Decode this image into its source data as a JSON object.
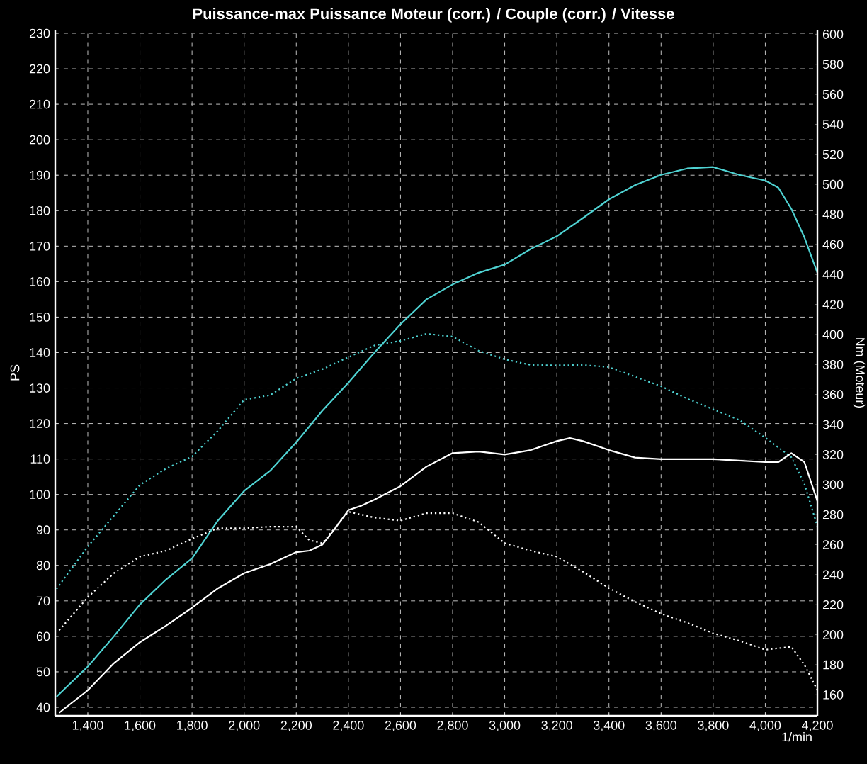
{
  "chart_data": {
    "type": "line",
    "title": "Puissance-max Puissance Moteur (corr.) / Couple (corr.) / Vitesse",
    "xlabel": "1/min",
    "ylabel": "PS",
    "y2label": "Nm (Moteur)",
    "xlim": [
      1275,
      4200
    ],
    "ylim": [
      37.6,
      231
    ],
    "y2lim": [
      146,
      603
    ],
    "xticks": [
      {
        "value": 1400,
        "label": "1,400"
      },
      {
        "value": 1600,
        "label": "1,600"
      },
      {
        "value": 1800,
        "label": "1,800"
      },
      {
        "value": 2000,
        "label": "2,000"
      },
      {
        "value": 2200,
        "label": "2,200"
      },
      {
        "value": 2400,
        "label": "2,400"
      },
      {
        "value": 2600,
        "label": "2,600"
      },
      {
        "value": 2800,
        "label": "2,800"
      },
      {
        "value": 3000,
        "label": "3,000"
      },
      {
        "value": 3200,
        "label": "3,200"
      },
      {
        "value": 3400,
        "label": "3,400"
      },
      {
        "value": 3600,
        "label": "3,600"
      },
      {
        "value": 3800,
        "label": "3,800"
      },
      {
        "value": 4000,
        "label": "4,000"
      },
      {
        "value": 4200,
        "label": "4,200"
      }
    ],
    "yticks": [
      40,
      50,
      60,
      70,
      80,
      90,
      100,
      110,
      120,
      130,
      140,
      150,
      160,
      170,
      180,
      190,
      200,
      210,
      220,
      230
    ],
    "y2ticks": [
      160,
      180,
      200,
      220,
      240,
      260,
      280,
      300,
      320,
      340,
      360,
      380,
      400,
      420,
      440,
      460,
      480,
      500,
      520,
      540,
      560,
      580,
      600
    ],
    "grid": true,
    "series": [
      {
        "color": "#4fd2d2",
        "axis": "y",
        "line_style": "solid",
        "x": [
          1280,
          1400,
          1500,
          1600,
          1700,
          1800,
          1900,
          2000,
          2100,
          2200,
          2300,
          2400,
          2500,
          2600,
          2700,
          2800,
          2900,
          3000,
          3100,
          3200,
          3300,
          3400,
          3500,
          3600,
          3700,
          3800,
          3900,
          4000,
          4050,
          4100,
          4150,
          4200
        ],
        "values": [
          43,
          51.5,
          60,
          69,
          76,
          82,
          92.7,
          101,
          106.7,
          114.7,
          123.6,
          131.5,
          140,
          148,
          155,
          159.2,
          162.5,
          164.8,
          169.2,
          172.8,
          177.9,
          183.2,
          187.2,
          190.1,
          191.9,
          192.3,
          190.1,
          188.5,
          186.5,
          180.5,
          172.5,
          162.5
        ]
      },
      {
        "color": "#4fd2d2",
        "axis": "y",
        "line_style": "dotted",
        "x": [
          1280,
          1400,
          1500,
          1600,
          1700,
          1800,
          1900,
          2000,
          2100,
          2200,
          2300,
          2400,
          2500,
          2600,
          2700,
          2800,
          2900,
          3000,
          3100,
          3200,
          3300,
          3400,
          3500,
          3600,
          3700,
          3800,
          3900,
          4000,
          4100,
          4150,
          4200
        ],
        "values": [
          73.4,
          85.3,
          94,
          102.7,
          107.3,
          110.7,
          118,
          126.7,
          128,
          132.7,
          135.3,
          138.7,
          142,
          143.3,
          145.3,
          144.5,
          140.5,
          138.1,
          136.5,
          136.4,
          136.5,
          135.9,
          133.2,
          130.5,
          127,
          124,
          121,
          116,
          110.5,
          103,
          91
        ]
      },
      {
        "color": "#ffffff",
        "axis": "y2",
        "line_style": "solid",
        "x": [
          1290,
          1400,
          1500,
          1600,
          1700,
          1800,
          1900,
          2000,
          2100,
          2200,
          2250,
          2300,
          2350,
          2400,
          2450,
          2500,
          2600,
          2700,
          2800,
          2900,
          3000,
          3100,
          3200,
          3250,
          3300,
          3400,
          3500,
          3600,
          3700,
          3800,
          3900,
          4000,
          4050,
          4100,
          4150,
          4200
        ],
        "values": [
          148,
          163,
          181,
          195,
          206,
          218,
          231,
          241,
          247,
          255,
          256,
          260,
          271,
          283,
          286,
          290,
          299,
          312,
          321,
          322,
          320,
          323,
          329,
          331,
          329,
          323,
          318,
          317,
          317,
          317,
          316,
          315,
          315,
          321,
          315,
          289
        ]
      },
      {
        "color": "#ffffff",
        "axis": "y2",
        "line_style": "dotted",
        "x": [
          1290,
          1400,
          1500,
          1600,
          1700,
          1800,
          1900,
          2000,
          2100,
          2200,
          2250,
          2300,
          2400,
          2500,
          2600,
          2700,
          2800,
          2900,
          3000,
          3100,
          3200,
          3300,
          3400,
          3500,
          3600,
          3700,
          3800,
          3900,
          4000,
          4100,
          4150,
          4200
        ],
        "values": [
          203,
          225,
          241,
          252,
          256,
          264,
          271,
          271,
          272,
          272,
          263,
          261,
          282,
          278,
          276,
          281,
          281,
          275,
          261,
          256,
          252,
          242,
          231,
          222,
          214,
          208,
          201,
          196,
          190,
          192,
          180,
          163
        ]
      }
    ]
  }
}
